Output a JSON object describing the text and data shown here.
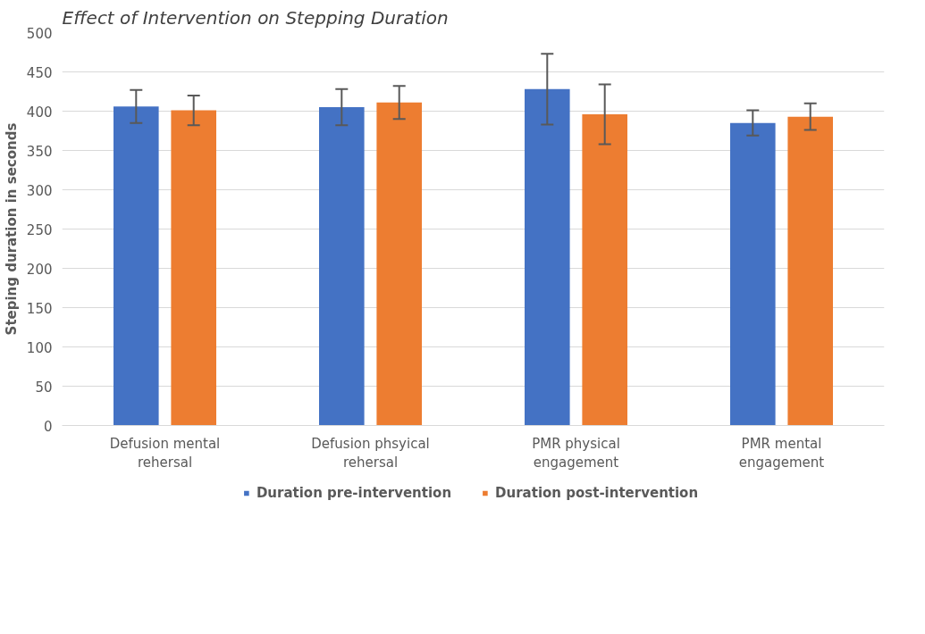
{
  "chart_data": {
    "type": "bar",
    "title": "Effect of Intervention on Stepping Duration",
    "ylabel": "Steping duration in seconds",
    "categories": [
      "Defusion mental rehersal",
      "Defusion phsyical rehersal",
      "PMR physical engagement",
      "PMR mental engagement"
    ],
    "series": [
      {
        "name": "Duration pre-intervention",
        "color": "#4472c4",
        "values": [
          406,
          405,
          428,
          385
        ],
        "errors": [
          21,
          23,
          45,
          16
        ]
      },
      {
        "name": "Duration post-intervention",
        "color": "#ed7d31",
        "values": [
          401,
          411,
          396,
          393
        ],
        "errors": [
          19,
          21,
          38,
          17
        ]
      }
    ],
    "ylim": [
      0,
      500
    ],
    "yticks": [
      0,
      50,
      100,
      150,
      200,
      250,
      300,
      350,
      400,
      450,
      500
    ],
    "grid": "y",
    "legend": "bottom"
  }
}
